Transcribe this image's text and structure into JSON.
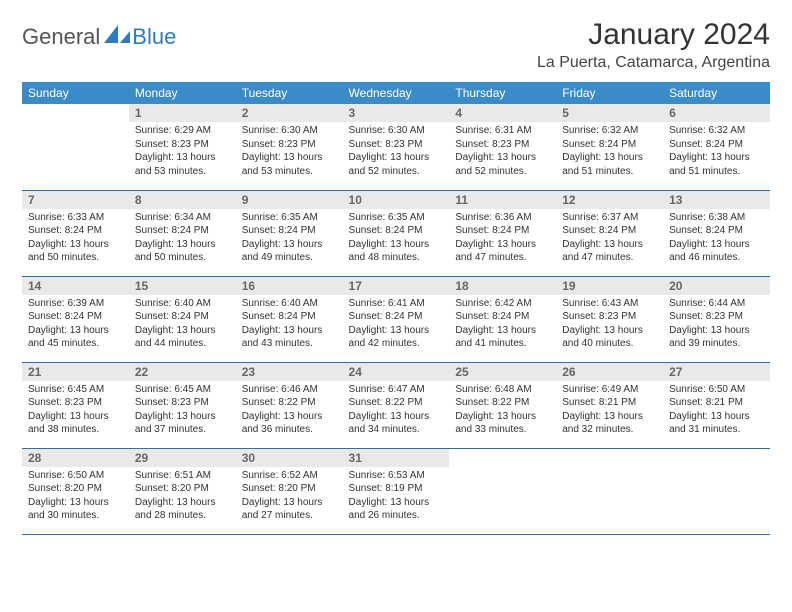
{
  "brand": {
    "general": "General",
    "blue": "Blue"
  },
  "title": "January 2024",
  "location": "La Puerta, Catamarca, Argentina",
  "colors": {
    "header_bg": "#3b8bc8",
    "header_text": "#ffffff",
    "daynum_bg": "#e9e9e9",
    "daynum_text": "#666666",
    "row_border": "#2f6fa8",
    "brand_blue": "#2f7bbf",
    "brand_gray": "#555555"
  },
  "weekdays": [
    "Sunday",
    "Monday",
    "Tuesday",
    "Wednesday",
    "Thursday",
    "Friday",
    "Saturday"
  ],
  "weeks": [
    [
      {
        "empty": true
      },
      {
        "n": "1",
        "sunrise": "6:29 AM",
        "sunset": "8:23 PM",
        "daylight": "13 hours and 53 minutes."
      },
      {
        "n": "2",
        "sunrise": "6:30 AM",
        "sunset": "8:23 PM",
        "daylight": "13 hours and 53 minutes."
      },
      {
        "n": "3",
        "sunrise": "6:30 AM",
        "sunset": "8:23 PM",
        "daylight": "13 hours and 52 minutes."
      },
      {
        "n": "4",
        "sunrise": "6:31 AM",
        "sunset": "8:23 PM",
        "daylight": "13 hours and 52 minutes."
      },
      {
        "n": "5",
        "sunrise": "6:32 AM",
        "sunset": "8:24 PM",
        "daylight": "13 hours and 51 minutes."
      },
      {
        "n": "6",
        "sunrise": "6:32 AM",
        "sunset": "8:24 PM",
        "daylight": "13 hours and 51 minutes."
      }
    ],
    [
      {
        "n": "7",
        "sunrise": "6:33 AM",
        "sunset": "8:24 PM",
        "daylight": "13 hours and 50 minutes."
      },
      {
        "n": "8",
        "sunrise": "6:34 AM",
        "sunset": "8:24 PM",
        "daylight": "13 hours and 50 minutes."
      },
      {
        "n": "9",
        "sunrise": "6:35 AM",
        "sunset": "8:24 PM",
        "daylight": "13 hours and 49 minutes."
      },
      {
        "n": "10",
        "sunrise": "6:35 AM",
        "sunset": "8:24 PM",
        "daylight": "13 hours and 48 minutes."
      },
      {
        "n": "11",
        "sunrise": "6:36 AM",
        "sunset": "8:24 PM",
        "daylight": "13 hours and 47 minutes."
      },
      {
        "n": "12",
        "sunrise": "6:37 AM",
        "sunset": "8:24 PM",
        "daylight": "13 hours and 47 minutes."
      },
      {
        "n": "13",
        "sunrise": "6:38 AM",
        "sunset": "8:24 PM",
        "daylight": "13 hours and 46 minutes."
      }
    ],
    [
      {
        "n": "14",
        "sunrise": "6:39 AM",
        "sunset": "8:24 PM",
        "daylight": "13 hours and 45 minutes."
      },
      {
        "n": "15",
        "sunrise": "6:40 AM",
        "sunset": "8:24 PM",
        "daylight": "13 hours and 44 minutes."
      },
      {
        "n": "16",
        "sunrise": "6:40 AM",
        "sunset": "8:24 PM",
        "daylight": "13 hours and 43 minutes."
      },
      {
        "n": "17",
        "sunrise": "6:41 AM",
        "sunset": "8:24 PM",
        "daylight": "13 hours and 42 minutes."
      },
      {
        "n": "18",
        "sunrise": "6:42 AM",
        "sunset": "8:24 PM",
        "daylight": "13 hours and 41 minutes."
      },
      {
        "n": "19",
        "sunrise": "6:43 AM",
        "sunset": "8:23 PM",
        "daylight": "13 hours and 40 minutes."
      },
      {
        "n": "20",
        "sunrise": "6:44 AM",
        "sunset": "8:23 PM",
        "daylight": "13 hours and 39 minutes."
      }
    ],
    [
      {
        "n": "21",
        "sunrise": "6:45 AM",
        "sunset": "8:23 PM",
        "daylight": "13 hours and 38 minutes."
      },
      {
        "n": "22",
        "sunrise": "6:45 AM",
        "sunset": "8:23 PM",
        "daylight": "13 hours and 37 minutes."
      },
      {
        "n": "23",
        "sunrise": "6:46 AM",
        "sunset": "8:22 PM",
        "daylight": "13 hours and 36 minutes."
      },
      {
        "n": "24",
        "sunrise": "6:47 AM",
        "sunset": "8:22 PM",
        "daylight": "13 hours and 34 minutes."
      },
      {
        "n": "25",
        "sunrise": "6:48 AM",
        "sunset": "8:22 PM",
        "daylight": "13 hours and 33 minutes."
      },
      {
        "n": "26",
        "sunrise": "6:49 AM",
        "sunset": "8:21 PM",
        "daylight": "13 hours and 32 minutes."
      },
      {
        "n": "27",
        "sunrise": "6:50 AM",
        "sunset": "8:21 PM",
        "daylight": "13 hours and 31 minutes."
      }
    ],
    [
      {
        "n": "28",
        "sunrise": "6:50 AM",
        "sunset": "8:20 PM",
        "daylight": "13 hours and 30 minutes."
      },
      {
        "n": "29",
        "sunrise": "6:51 AM",
        "sunset": "8:20 PM",
        "daylight": "13 hours and 28 minutes."
      },
      {
        "n": "30",
        "sunrise": "6:52 AM",
        "sunset": "8:20 PM",
        "daylight": "13 hours and 27 minutes."
      },
      {
        "n": "31",
        "sunrise": "6:53 AM",
        "sunset": "8:19 PM",
        "daylight": "13 hours and 26 minutes."
      },
      {
        "empty": true
      },
      {
        "empty": true
      },
      {
        "empty": true
      }
    ]
  ],
  "labels": {
    "sunrise": "Sunrise:",
    "sunset": "Sunset:",
    "daylight": "Daylight:"
  }
}
